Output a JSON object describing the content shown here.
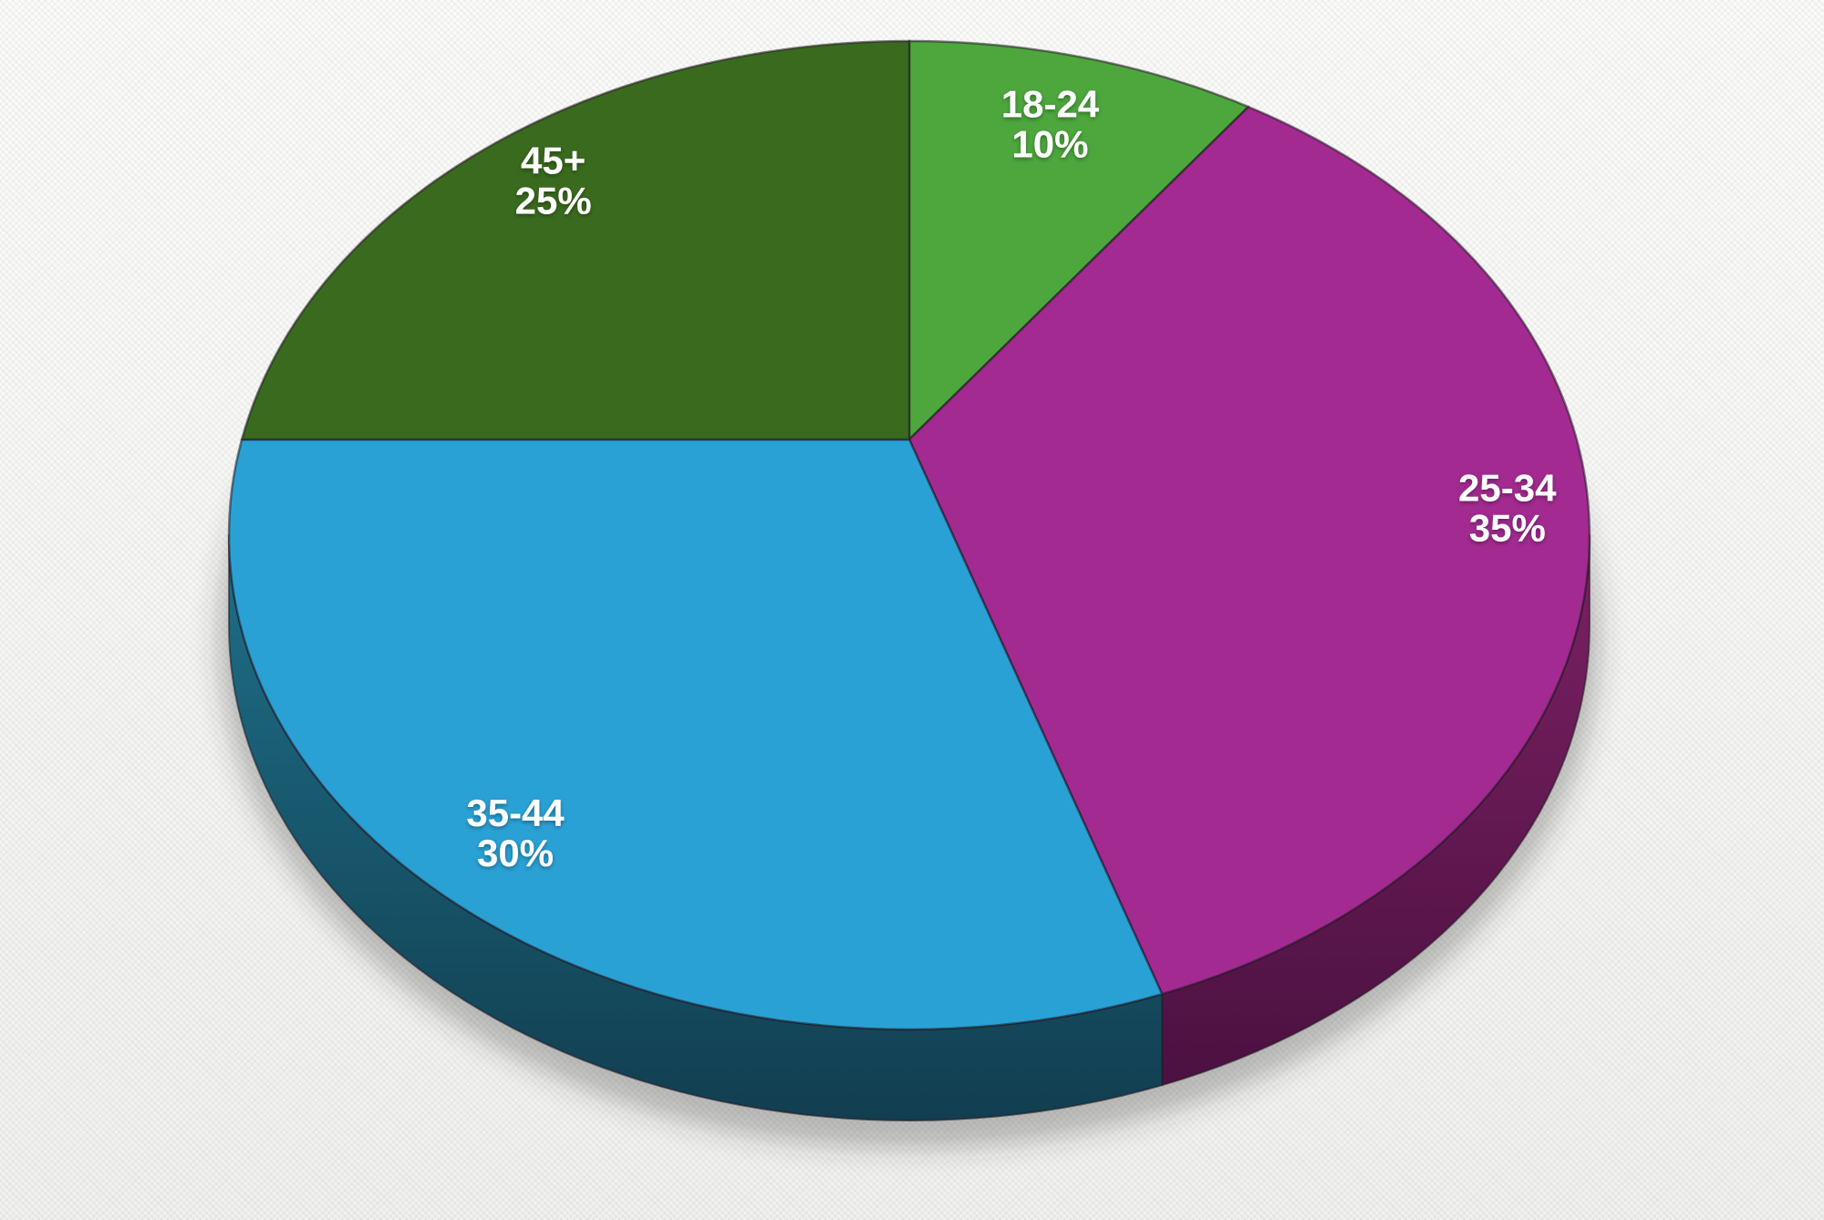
{
  "background": {
    "base_color": "#f6f6f4",
    "pattern": "diagonal-weave-texture"
  },
  "chart_data": {
    "type": "pie",
    "style": "3d-perspective",
    "title": "",
    "legend": "none",
    "direction": "clockwise",
    "start_angle_deg": 0,
    "labels_on_slices": true,
    "label_color": "#ffffff",
    "categories": [
      "18-24",
      "25-34",
      "35-44",
      "45+"
    ],
    "values": [
      10,
      35,
      30,
      25
    ],
    "slices": [
      {
        "label": "18-24",
        "value_pct": 10,
        "display_value": "10%",
        "top_color": "#4da73d"
      },
      {
        "label": "25-34",
        "value_pct": 35,
        "display_value": "35%",
        "top_color": "#a32a90",
        "side_color_top": "#7c2164",
        "side_color_bottom": "#4b1140"
      },
      {
        "label": "35-44",
        "value_pct": 30,
        "display_value": "30%",
        "top_color": "#2aa1d5",
        "side_color_top": "#1e7089",
        "side_color_bottom": "#123e50"
      },
      {
        "label": "45+",
        "value_pct": 25,
        "display_value": "25%",
        "top_color": "#3a6a1e"
      }
    ]
  }
}
